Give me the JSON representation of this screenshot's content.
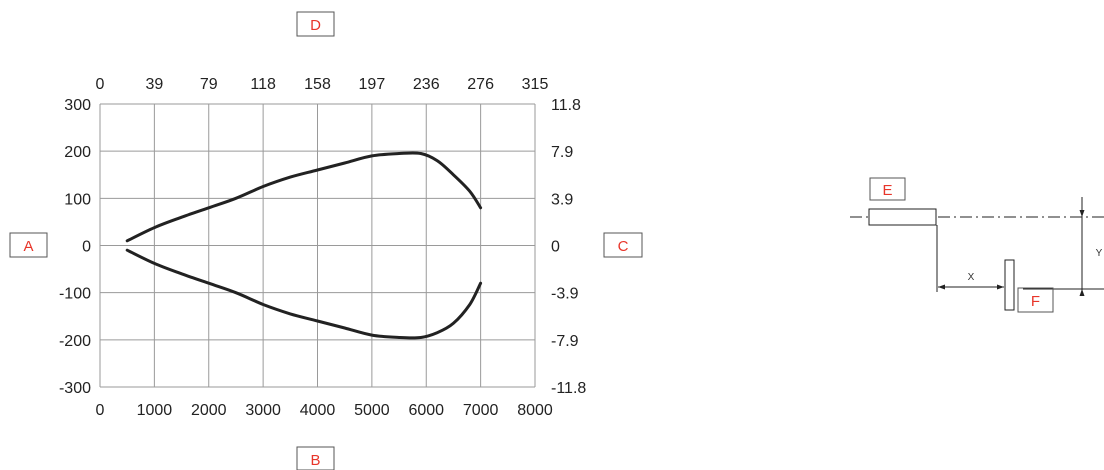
{
  "chart_data": {
    "type": "line",
    "title": "",
    "xlabel": "",
    "ylabel": "",
    "xlim": [
      0,
      8000
    ],
    "ylim": [
      -300,
      300
    ],
    "x_ticks": [
      0,
      1000,
      2000,
      3000,
      4000,
      5000,
      6000,
      7000,
      8000
    ],
    "y_ticks": [
      300,
      200,
      100,
      0,
      -100,
      -200,
      -300
    ],
    "x_ticks_secondary": [
      "0",
      "39",
      "79",
      "118",
      "158",
      "197",
      "236",
      "276",
      "315"
    ],
    "y_ticks_secondary": [
      "11.8",
      "7.9",
      "3.9",
      "0",
      "-3.9",
      "-7.9",
      "-11.8"
    ],
    "grid": true,
    "series": [
      {
        "x": [
          500,
          1000,
          1500,
          2000,
          2500,
          3000,
          3500,
          4000,
          4500,
          5000,
          5500,
          5900,
          6200,
          6500,
          6800,
          7000
        ],
        "y": [
          10,
          38,
          60,
          80,
          100,
          125,
          145,
          160,
          175,
          190,
          195,
          195,
          180,
          150,
          115,
          80
        ]
      },
      {
        "x": [
          500,
          1000,
          1500,
          2000,
          2500,
          3000,
          3500,
          4000,
          4500,
          5000,
          5500,
          5900,
          6200,
          6500,
          6800,
          7000
        ],
        "y": [
          -10,
          -38,
          -60,
          -80,
          -100,
          -125,
          -145,
          -160,
          -175,
          -190,
          -195,
          -195,
          -185,
          -165,
          -125,
          -80
        ]
      }
    ],
    "line_color": "#222222",
    "grid_color": "#9a9a9a"
  },
  "callouts": {
    "a": "A",
    "b": "B",
    "c": "C",
    "d": "D",
    "e": "E",
    "f": "F",
    "color": "#e8352a"
  },
  "diagram": {
    "x_label": "X",
    "y_label": "Y"
  }
}
